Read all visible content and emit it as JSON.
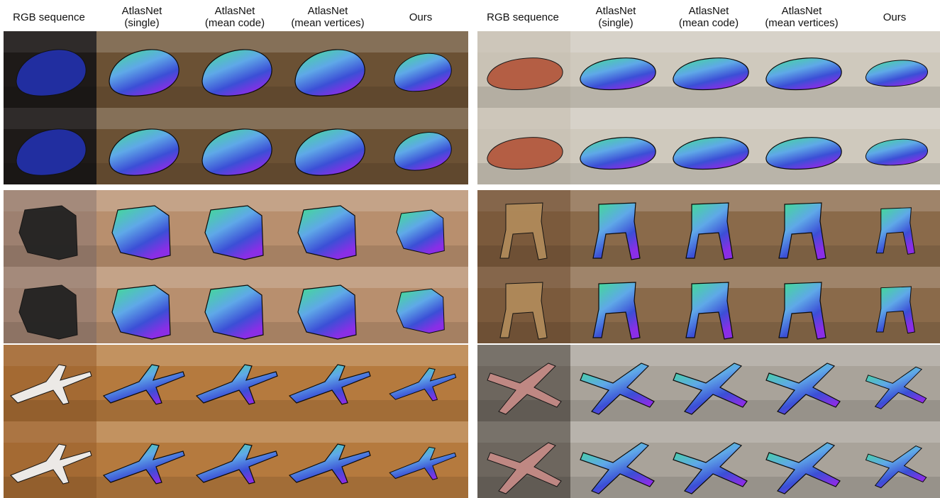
{
  "figure": {
    "headers": {
      "rgb": "RGB sequence",
      "single": [
        "AtlasNet",
        "(single)"
      ],
      "mean_code": [
        "AtlasNet",
        "(mean code)"
      ],
      "mean_vertices": [
        "AtlasNet",
        "(mean vertices)"
      ],
      "ours": "Ours"
    },
    "left": {
      "groups": [
        {
          "object": "car",
          "scene": "dark warm room",
          "bg": "#6b5134",
          "rgbbg": "#1e1a18",
          "obj_color": "#2230a8"
        },
        {
          "object": "armchair",
          "scene": "blurred warm room",
          "bg": "#b88f6e",
          "rgbbg": "#9d8070",
          "obj_color": "#222222"
        },
        {
          "object": "airplane",
          "scene": "wooden floor office",
          "bg": "#b57a3e",
          "rgbbg": "#a46a33",
          "obj_color": "#f0f0f0"
        }
      ]
    },
    "right": {
      "groups": [
        {
          "object": "convertible car",
          "scene": "light marble room",
          "bg": "#cfc9bd",
          "rgbbg": "#c9c2b5",
          "obj_color": "#b3593f"
        },
        {
          "object": "folding chair",
          "scene": "ornate hall",
          "bg": "#8a6a4a",
          "rgbbg": "#7b5a3c",
          "obj_color": "#b08a5a"
        },
        {
          "object": "propeller plane",
          "scene": "pale gray room",
          "bg": "#a9a39a",
          "rgbbg": "#6d665e",
          "obj_color": "#c48a86"
        }
      ]
    },
    "normal_colors": {
      "top": "#3fe08c",
      "side": "#3b4fd6",
      "front": "#8a2ee6",
      "rim": "#5fa8e8"
    }
  }
}
